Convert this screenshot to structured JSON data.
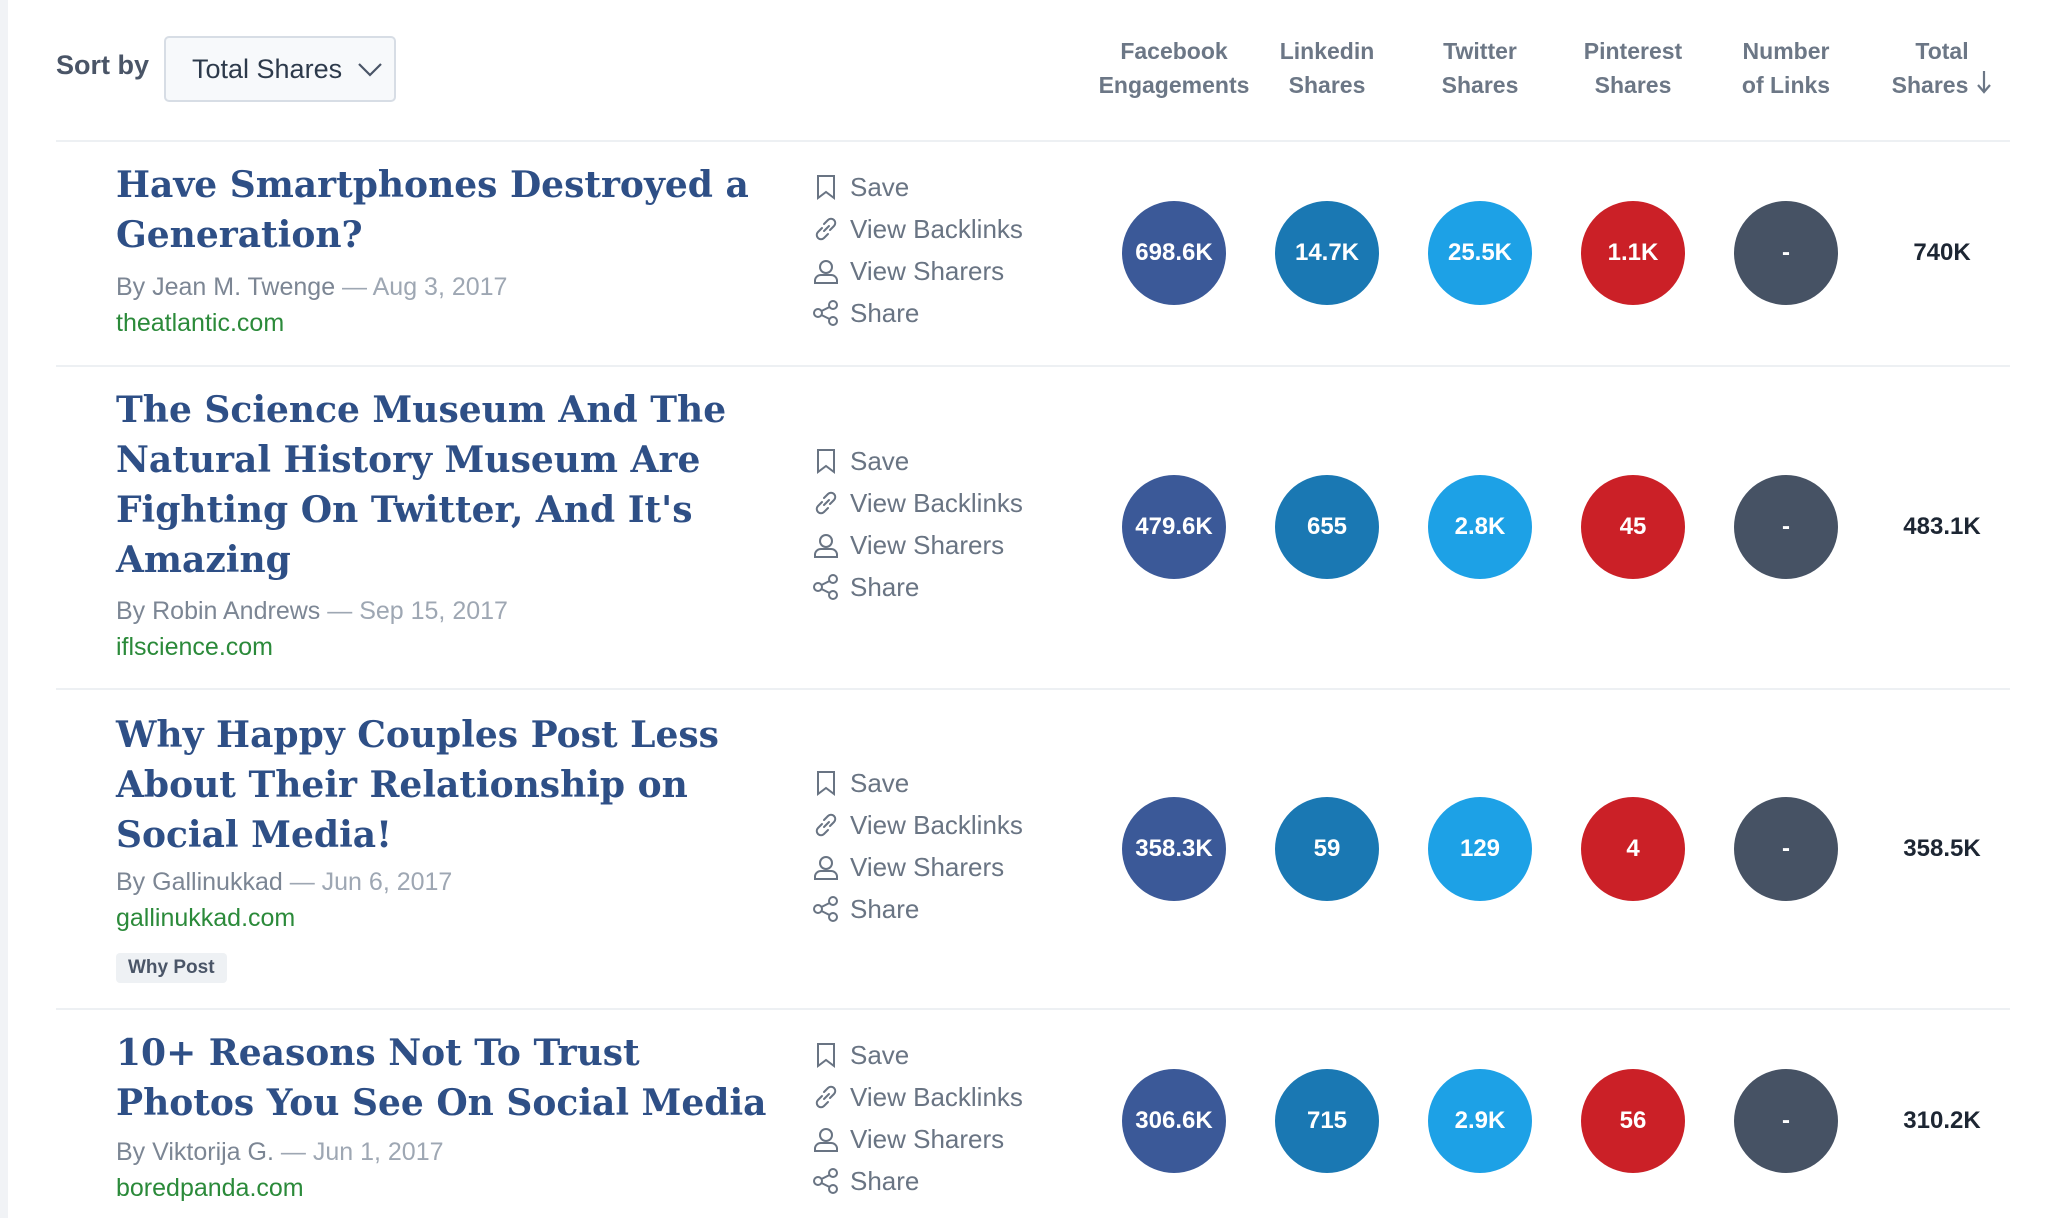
{
  "sort": {
    "label": "Sort by",
    "selected": "Total Shares"
  },
  "columns": [
    {
      "line1": "Facebook",
      "line2": "Engagements"
    },
    {
      "line1": "Linkedin",
      "line2": "Shares"
    },
    {
      "line1": "Twitter",
      "line2": "Shares"
    },
    {
      "line1": "Pinterest",
      "line2": "Shares"
    },
    {
      "line1": "Number",
      "line2": "of Links"
    },
    {
      "line1": "Total",
      "line2": "Shares"
    }
  ],
  "actions": {
    "save": "Save",
    "backlinks": "View Backlinks",
    "sharers": "View Sharers",
    "share": "Share"
  },
  "colors": {
    "facebook": "#3b5998",
    "linkedin": "#1a78b3",
    "twitter": "#1da1e6",
    "pinterest": "#cb2027",
    "links": "#465264"
  },
  "articles": [
    {
      "title": "Have Smartphones Destroyed a Generation?",
      "author": "By Jean M. Twenge",
      "sep": " — ",
      "date": "Aug 3, 2017",
      "domain": "theatlantic.com",
      "facebook": "698.6K",
      "linkedin": "14.7K",
      "twitter": "25.5K",
      "pinterest": "1.1K",
      "links": "-",
      "total": "740K"
    },
    {
      "title": "The Science Museum And The Natural History Museum Are Fighting On Twitter, And It's Amazing",
      "author": "By Robin Andrews",
      "sep": " — ",
      "date": "Sep 15, 2017",
      "domain": "iflscience.com",
      "facebook": "479.6K",
      "linkedin": "655",
      "twitter": "2.8K",
      "pinterest": "45",
      "links": "-",
      "total": "483.1K"
    },
    {
      "title_a": "Why Happy Couples Post Less About Their Relationship on ",
      "title_b": "Social Media",
      "title_c": "!",
      "author": "By Gallinukkad",
      "sep": " — ",
      "date": "Jun 6, 2017",
      "domain": "gallinukkad.com",
      "tag": "Why Post",
      "facebook": "358.3K",
      "linkedin": "59",
      "twitter": "129",
      "pinterest": "4",
      "links": "-",
      "total": "358.5K"
    },
    {
      "title_a": "10+ Reasons Not To Trust Photos You See On ",
      "title_b": "Social Media",
      "author": "By Viktorija G.",
      "sep": " — ",
      "date": "Jun 1, 2017",
      "domain": "boredpanda.com",
      "facebook": "306.6K",
      "linkedin": "715",
      "twitter": "2.9K",
      "pinterest": "56",
      "links": "-",
      "total": "310.2K"
    }
  ]
}
